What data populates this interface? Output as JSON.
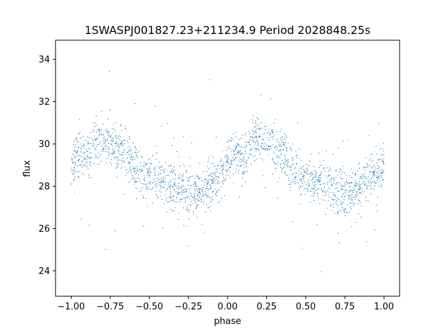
{
  "chart_data": {
    "type": "scatter",
    "title": "1SWASPJ001827.23+211234.9 Period 2028848.25s",
    "xlabel": "phase",
    "ylabel": "flux",
    "xlim": [
      -1.1,
      1.1
    ],
    "ylim": [
      22.8,
      34.9
    ],
    "x_ticks": [
      -1.0,
      -0.75,
      -0.5,
      -0.25,
      0.0,
      0.25,
      0.5,
      0.75,
      1.0
    ],
    "x_tick_labels": [
      "−1.00",
      "−0.75",
      "−0.50",
      "−0.25",
      "0.00",
      "0.25",
      "0.50",
      "0.75",
      "1.00"
    ],
    "y_ticks": [
      24,
      26,
      28,
      30,
      32,
      34
    ],
    "y_tick_labels": [
      "24",
      "26",
      "28",
      "30",
      "32",
      "34"
    ],
    "grid": false,
    "legend": "none",
    "point_color": "#1f77b4",
    "series": [
      {
        "x": [
          -1.0,
          -0.95,
          -0.9,
          -0.85,
          -0.8,
          -0.75,
          -0.7,
          -0.65,
          -0.6,
          -0.55,
          -0.5,
          -0.45,
          -0.4,
          -0.35,
          -0.3,
          -0.25,
          -0.2,
          -0.15,
          -0.1,
          -0.05,
          0.0,
          0.05,
          0.1,
          0.15,
          0.2,
          0.25,
          0.3,
          0.35,
          0.4,
          0.45,
          0.5,
          0.55,
          0.6,
          0.65,
          0.7,
          0.75,
          0.8,
          0.85,
          0.9,
          0.95,
          1.0
        ],
        "y": [
          29.0,
          29.6,
          29.3,
          29.9,
          30.3,
          30.1,
          29.8,
          29.6,
          29.0,
          28.6,
          28.4,
          28.3,
          28.2,
          28.0,
          27.9,
          27.6,
          27.8,
          28.0,
          28.3,
          28.5,
          29.0,
          29.6,
          29.3,
          29.9,
          30.3,
          30.1,
          29.8,
          29.6,
          29.0,
          28.6,
          28.4,
          28.3,
          28.2,
          28.0,
          27.9,
          27.6,
          27.8,
          28.0,
          28.3,
          28.5,
          29.0
        ]
      }
    ]
  }
}
